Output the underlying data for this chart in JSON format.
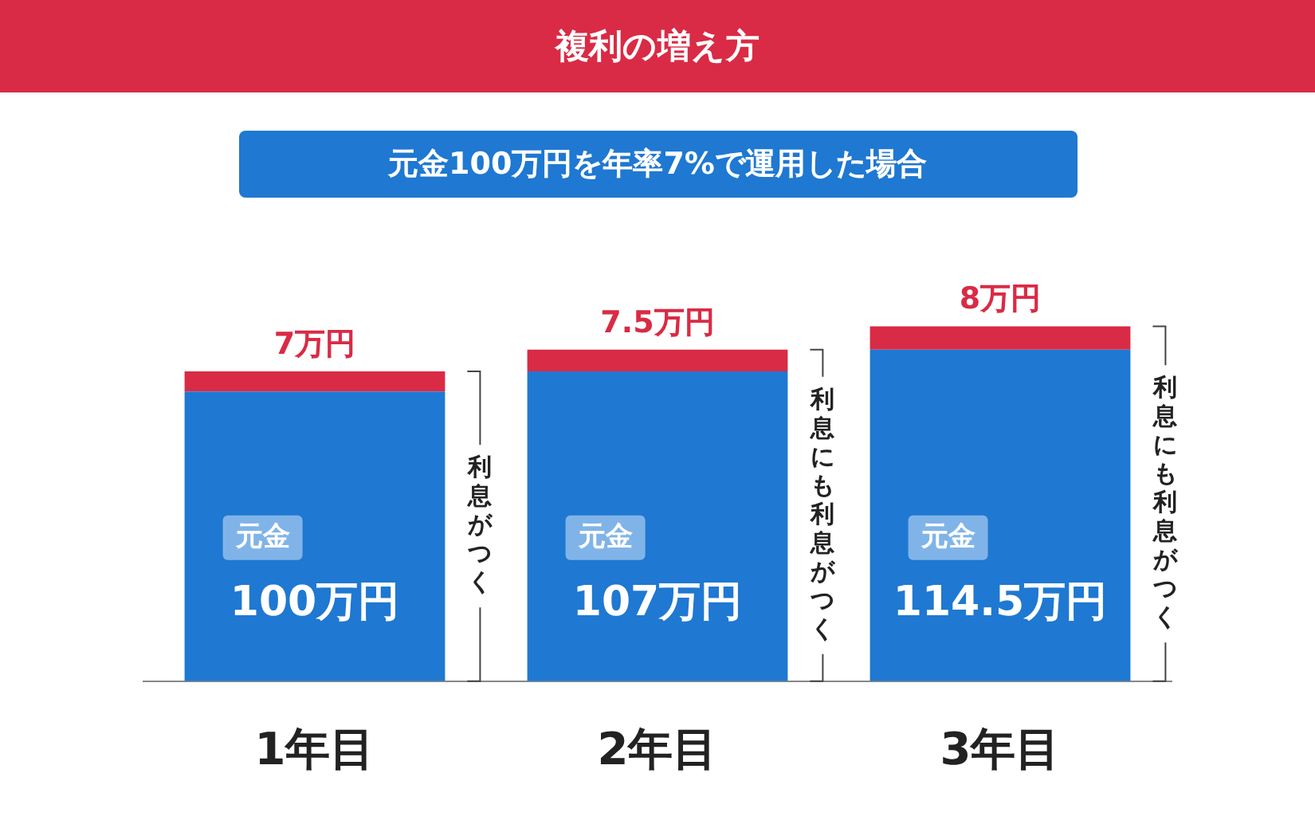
{
  "chart_data": {
    "type": "bar",
    "title": "複利の増え方",
    "subtitle": "元金100万円を年率7%で運用した場合",
    "categories": [
      "1年目",
      "2年目",
      "3年目"
    ],
    "stacked": true,
    "series": [
      {
        "name": "元金",
        "color": "#1f78d1",
        "values": [
          100,
          107,
          114.5
        ],
        "value_labels": [
          "100万円",
          "107万円",
          "114.5万円"
        ]
      },
      {
        "color": "#d92b45",
        "values": [
          7,
          7.5,
          8
        ],
        "value_labels": [
          "7万円",
          "7.5万円",
          "8万円"
        ]
      }
    ],
    "annotations": [
      "利息がつく",
      "利息にも利息がつく",
      "利息にも利息がつく"
    ],
    "grid": false,
    "legend": false
  }
}
